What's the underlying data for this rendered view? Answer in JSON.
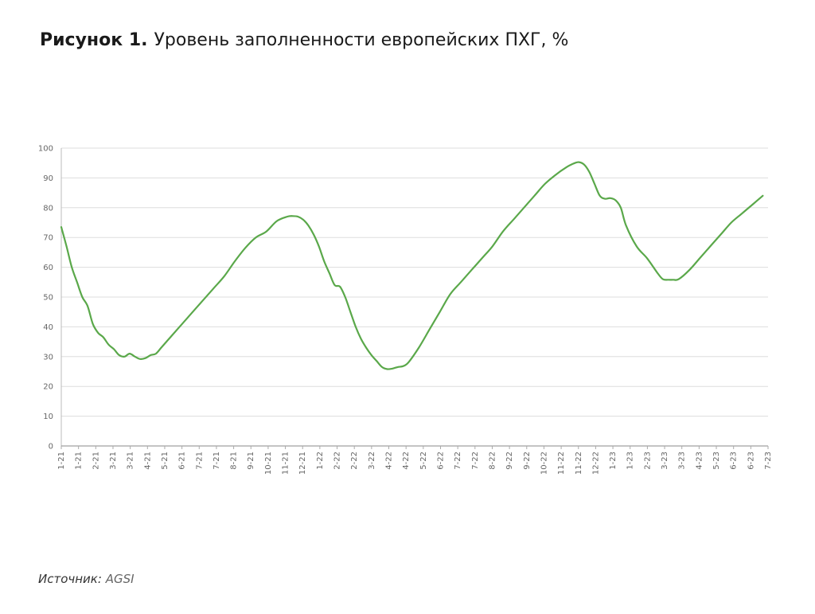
{
  "figure": {
    "label": "Рисунок 1.",
    "title": "Уровень заполненности европейских ПХГ, %"
  },
  "source": {
    "label": "Источник:",
    "value": "AGSI"
  },
  "chart_data": {
    "type": "line",
    "title": "Уровень заполненности европейских ПХГ, %",
    "xlabel": "",
    "ylabel": "",
    "ylim": [
      0,
      100
    ],
    "yticks": [
      0,
      10,
      20,
      30,
      40,
      50,
      60,
      70,
      80,
      90,
      100
    ],
    "grid": "horizontal",
    "legend": "none",
    "line_color": "#5aa84a",
    "x_tick_labels": [
      "1-21",
      "1-21",
      "2-21",
      "3-21",
      "3-21",
      "4-21",
      "5-21",
      "6-21",
      "7-21",
      "7-21",
      "8-21",
      "9-21",
      "10-21",
      "11-21",
      "12-21",
      "1-22",
      "2-22",
      "2-22",
      "3-22",
      "4-22",
      "4-22",
      "5-22",
      "6-22",
      "7-22",
      "7-22",
      "8-22",
      "9-22",
      "9-22",
      "10-22",
      "11-22",
      "11-22",
      "12-22",
      "1-23",
      "1-23",
      "2-23",
      "3-23",
      "3-23",
      "4-23",
      "5-23",
      "6-23",
      "6-23",
      "7-23"
    ],
    "series": [
      {
        "x": [
          "2021-01-01",
          "2021-01-08",
          "2021-01-15",
          "2021-01-22",
          "2021-01-29",
          "2021-02-05",
          "2021-02-12",
          "2021-02-19",
          "2021-02-26",
          "2021-03-05",
          "2021-03-12",
          "2021-03-19",
          "2021-03-26",
          "2021-04-02",
          "2021-04-09",
          "2021-04-16",
          "2021-04-23",
          "2021-04-30",
          "2021-05-07",
          "2021-05-14",
          "2021-05-21",
          "2021-05-28",
          "2021-06-11",
          "2021-06-25",
          "2021-07-09",
          "2021-07-23",
          "2021-08-06",
          "2021-08-20",
          "2021-09-03",
          "2021-09-17",
          "2021-10-01",
          "2021-10-15",
          "2021-10-29",
          "2021-11-05",
          "2021-11-12",
          "2021-11-19",
          "2021-11-26",
          "2021-12-03",
          "2021-12-10",
          "2021-12-17",
          "2021-12-24",
          "2021-12-31",
          "2022-01-07",
          "2022-01-14",
          "2022-01-21",
          "2022-01-28",
          "2022-02-04",
          "2022-02-11",
          "2022-02-18",
          "2022-02-25",
          "2022-03-04",
          "2022-03-11",
          "2022-03-18",
          "2022-03-25",
          "2022-04-01",
          "2022-04-08",
          "2022-04-22",
          "2022-05-06",
          "2022-05-20",
          "2022-06-03",
          "2022-06-17",
          "2022-07-01",
          "2022-07-15",
          "2022-07-29",
          "2022-08-12",
          "2022-08-26",
          "2022-09-09",
          "2022-09-23",
          "2022-10-07",
          "2022-10-21",
          "2022-11-04",
          "2022-11-14",
          "2022-11-21",
          "2022-11-28",
          "2022-12-05",
          "2022-12-12",
          "2022-12-19",
          "2022-12-26",
          "2023-01-02",
          "2023-01-09",
          "2023-01-16",
          "2023-01-23",
          "2023-02-06",
          "2023-02-20",
          "2023-03-06",
          "2023-03-13",
          "2023-03-20",
          "2023-03-27",
          "2023-04-03",
          "2023-04-17",
          "2023-05-01",
          "2023-05-15",
          "2023-05-29",
          "2023-06-12",
          "2023-06-26",
          "2023-07-10",
          "2023-07-24"
        ],
        "values": [
          73.5,
          67,
          60,
          55,
          50,
          47,
          41,
          38,
          36.5,
          34,
          32.5,
          30.5,
          30,
          31,
          30,
          29.2,
          29.5,
          30.5,
          31,
          33,
          35,
          37,
          41,
          45,
          49,
          53,
          57,
          62,
          66.5,
          70,
          72,
          75.5,
          77,
          77.2,
          77,
          76,
          74,
          71,
          67,
          62,
          58,
          54,
          53.5,
          50,
          45,
          40,
          36,
          33,
          30.5,
          28.5,
          26.5,
          25.8,
          26,
          26.5,
          26.8,
          28,
          33,
          39,
          45,
          51,
          55,
          59,
          63,
          67,
          72,
          76,
          80,
          84,
          88,
          91,
          93.5,
          94.8,
          95.3,
          94.5,
          92,
          88,
          84,
          83,
          83.2,
          82.5,
          80,
          74,
          67,
          63,
          58,
          56,
          55.8,
          55.8,
          56,
          59,
          63,
          67,
          71,
          75,
          78,
          81,
          84
        ]
      }
    ]
  }
}
